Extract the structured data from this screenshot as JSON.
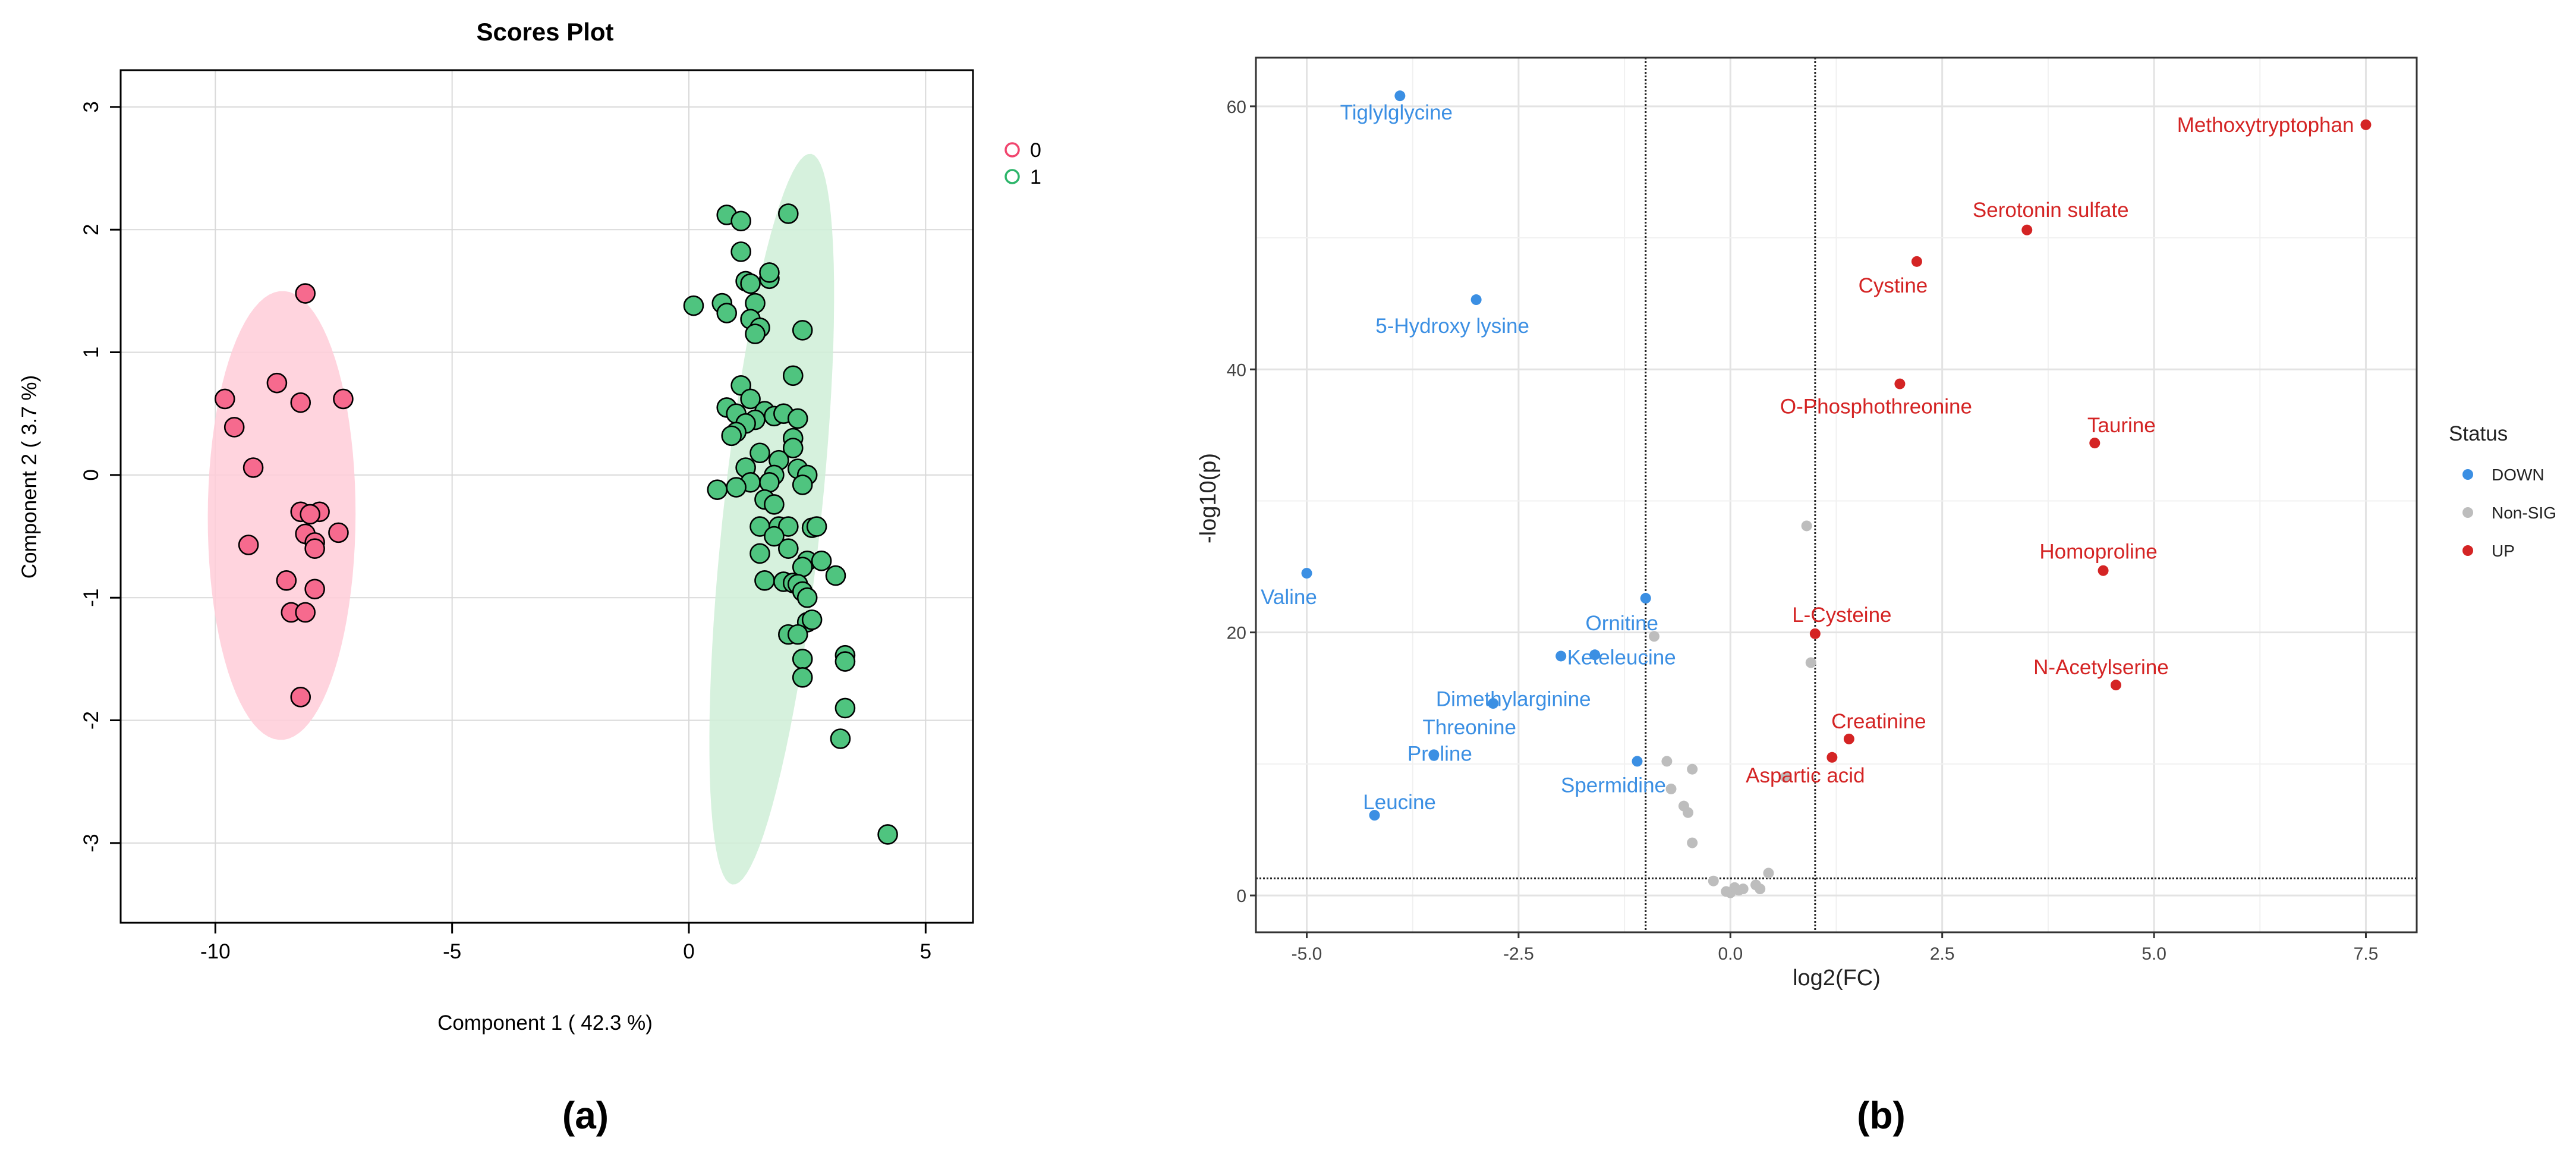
{
  "chart_data": [
    {
      "panel": "a",
      "type": "scatter",
      "title": "Scores Plot",
      "xlabel": "Component 1 ( 42.3 %)",
      "ylabel": "Component 2 ( 3.7 %)",
      "xlim": [
        -12,
        6
      ],
      "ylim": [
        -3.65,
        3.3
      ],
      "xticks": [
        -10,
        -5,
        0,
        5
      ],
      "xtick_labels": [
        "-10",
        "-5",
        "0",
        "5"
      ],
      "yticks": [
        -3,
        -2,
        -1,
        0,
        1,
        2,
        3
      ],
      "ytick_labels": [
        "-3",
        "-2",
        "-1",
        "0",
        "1",
        "2",
        "3"
      ],
      "grid": true,
      "legend_position": "top-right",
      "series": [
        {
          "name": "0",
          "color": "#f1456e",
          "fill": "#f66a8e",
          "ellipse_fill": "#ffccd8",
          "points": [
            [
              -8.1,
              1.48
            ],
            [
              -9.8,
              0.62
            ],
            [
              -8.7,
              0.75
            ],
            [
              -8.2,
              0.59
            ],
            [
              -7.3,
              0.62
            ],
            [
              -9.6,
              0.39
            ],
            [
              -9.2,
              0.06
            ],
            [
              -8.2,
              -0.3
            ],
            [
              -7.8,
              -0.3
            ],
            [
              -8.0,
              -0.32
            ],
            [
              -8.1,
              -0.48
            ],
            [
              -7.9,
              -0.55
            ],
            [
              -7.9,
              -0.6
            ],
            [
              -7.4,
              -0.47
            ],
            [
              -9.3,
              -0.57
            ],
            [
              -8.5,
              -0.86
            ],
            [
              -7.9,
              -0.93
            ],
            [
              -8.4,
              -1.12
            ],
            [
              -8.1,
              -1.12
            ],
            [
              -8.2,
              -1.81
            ]
          ],
          "ellipse": {
            "center": [
              -8.6,
              -0.33
            ],
            "angle": 88,
            "axes": [
              1.83,
              1.56
            ]
          }
        },
        {
          "name": "1",
          "color": "#2db56a",
          "fill": "#4fc47f",
          "ellipse_fill": "#cfeed7",
          "points": [
            [
              0.8,
              2.12
            ],
            [
              1.1,
              2.07
            ],
            [
              2.1,
              2.13
            ],
            [
              1.1,
              1.82
            ],
            [
              1.7,
              1.6
            ],
            [
              1.7,
              1.65
            ],
            [
              1.2,
              1.58
            ],
            [
              1.3,
              1.56
            ],
            [
              0.7,
              1.4
            ],
            [
              1.4,
              1.4
            ],
            [
              0.1,
              1.38
            ],
            [
              0.8,
              1.32
            ],
            [
              1.3,
              1.27
            ],
            [
              1.5,
              1.2
            ],
            [
              2.4,
              1.18
            ],
            [
              1.4,
              1.15
            ],
            [
              2.2,
              0.81
            ],
            [
              1.1,
              0.73
            ],
            [
              1.3,
              0.62
            ],
            [
              0.8,
              0.55
            ],
            [
              1.0,
              0.5
            ],
            [
              1.6,
              0.52
            ],
            [
              1.8,
              0.48
            ],
            [
              2.0,
              0.5
            ],
            [
              2.3,
              0.46
            ],
            [
              1.4,
              0.45
            ],
            [
              1.2,
              0.42
            ],
            [
              1.0,
              0.35
            ],
            [
              0.9,
              0.32
            ],
            [
              2.2,
              0.3
            ],
            [
              2.2,
              0.22
            ],
            [
              1.5,
              0.18
            ],
            [
              1.9,
              0.12
            ],
            [
              1.2,
              0.06
            ],
            [
              2.3,
              0.05
            ],
            [
              1.8,
              0.0
            ],
            [
              1.3,
              -0.06
            ],
            [
              1.7,
              -0.06
            ],
            [
              2.5,
              0.0
            ],
            [
              0.6,
              -0.12
            ],
            [
              1.0,
              -0.1
            ],
            [
              2.4,
              -0.08
            ],
            [
              1.6,
              -0.2
            ],
            [
              1.8,
              -0.24
            ],
            [
              1.5,
              -0.42
            ],
            [
              1.9,
              -0.42
            ],
            [
              2.1,
              -0.42
            ],
            [
              2.6,
              -0.43
            ],
            [
              2.7,
              -0.42
            ],
            [
              1.8,
              -0.5
            ],
            [
              1.5,
              -0.64
            ],
            [
              2.1,
              -0.6
            ],
            [
              2.5,
              -0.7
            ],
            [
              2.4,
              -0.75
            ],
            [
              2.8,
              -0.7
            ],
            [
              3.1,
              -0.82
            ],
            [
              1.6,
              -0.86
            ],
            [
              2.0,
              -0.87
            ],
            [
              2.2,
              -0.88
            ],
            [
              2.3,
              -0.89
            ],
            [
              2.4,
              -0.95
            ],
            [
              2.5,
              -1.0
            ],
            [
              2.5,
              -1.2
            ],
            [
              2.6,
              -1.18
            ],
            [
              2.1,
              -1.3
            ],
            [
              2.3,
              -1.3
            ],
            [
              3.3,
              -1.47
            ],
            [
              3.3,
              -1.52
            ],
            [
              2.4,
              -1.5
            ],
            [
              2.4,
              -1.65
            ],
            [
              3.3,
              -1.9
            ],
            [
              3.2,
              -2.15
            ],
            [
              4.2,
              -2.93
            ]
          ],
          "ellipse": {
            "center": [
              1.75,
              -0.36
            ],
            "angle": 73,
            "axes": [
              3.1,
              1.0
            ]
          }
        }
      ]
    },
    {
      "panel": "b",
      "type": "scatter",
      "title": "",
      "xlabel": "log2(FC)",
      "ylabel": "-log10(p)",
      "xlim": [
        -5.6,
        8.1
      ],
      "ylim": [
        -2.8,
        63.7
      ],
      "xticks": [
        -5.0,
        -2.5,
        0.0,
        2.5,
        5.0,
        7.5
      ],
      "xtick_labels": [
        "-5.0",
        "-2.5",
        "0.0",
        "2.5",
        "5.0",
        "7.5"
      ],
      "yticks": [
        0,
        20,
        40,
        60
      ],
      "ytick_labels": [
        "0",
        "20",
        "40",
        "60"
      ],
      "grid": true,
      "thresholds": {
        "fc_left": -1,
        "fc_right": 1,
        "p_line": 1.3
      },
      "legend_title": "Status",
      "legend_position": "right",
      "series": [
        {
          "name": "DOWN",
          "color": "#3b8fe3",
          "points": [
            {
              "x": -3.9,
              "y": 60.8,
              "label": "Tiglylglycine"
            },
            {
              "x": -3.0,
              "y": 45.3,
              "label": "5-Hydroxy lysine"
            },
            {
              "x": -5.0,
              "y": 24.5,
              "label": "Valine"
            },
            {
              "x": -1.0,
              "y": 22.6,
              "label": "Ornitine"
            },
            {
              "x": -2.0,
              "y": 18.2,
              "label": "Dimethylarginine"
            },
            {
              "x": -1.6,
              "y": 18.3,
              "label": "Keteleucine"
            },
            {
              "x": -2.8,
              "y": 14.6,
              "label": "Threonine"
            },
            {
              "x": -3.5,
              "y": 10.7,
              "label": "Proline"
            },
            {
              "x": -1.1,
              "y": 10.2,
              "label": "Spermidine"
            },
            {
              "x": -4.2,
              "y": 6.1,
              "label": "Leucine"
            }
          ]
        },
        {
          "name": "Non-SIG",
          "color": "#bdbdbd",
          "points": [
            {
              "x": 0.9,
              "y": 28.1
            },
            {
              "x": -0.9,
              "y": 19.7
            },
            {
              "x": 0.95,
              "y": 17.7
            },
            {
              "x": -0.75,
              "y": 10.2
            },
            {
              "x": -0.45,
              "y": 9.6
            },
            {
              "x": -0.7,
              "y": 8.1
            },
            {
              "x": -0.55,
              "y": 6.8
            },
            {
              "x": -0.5,
              "y": 6.3
            },
            {
              "x": -0.45,
              "y": 4.0
            },
            {
              "x": 0.65,
              "y": 9.0
            },
            {
              "x": -0.2,
              "y": 1.1
            },
            {
              "x": 0.45,
              "y": 1.7
            },
            {
              "x": 0.3,
              "y": 0.8
            },
            {
              "x": 0.05,
              "y": 0.6
            },
            {
              "x": 0.15,
              "y": 0.5
            },
            {
              "x": 0.0,
              "y": 0.2
            },
            {
              "x": 0.1,
              "y": 0.4
            },
            {
              "x": 0.35,
              "y": 0.5
            },
            {
              "x": -0.05,
              "y": 0.3
            }
          ]
        },
        {
          "name": "UP",
          "color": "#d42424",
          "points": [
            {
              "x": 7.5,
              "y": 58.6,
              "label": "Methoxytryptophan"
            },
            {
              "x": 3.5,
              "y": 50.6,
              "label": "Serotonin sulfate"
            },
            {
              "x": 2.2,
              "y": 48.2,
              "label": "Cystine"
            },
            {
              "x": 2.0,
              "y": 38.9,
              "label": "O-Phosphothreonine"
            },
            {
              "x": 4.3,
              "y": 34.4,
              "label": "Taurine"
            },
            {
              "x": 4.4,
              "y": 24.7,
              "label": "Homoproline"
            },
            {
              "x": 1.0,
              "y": 19.9,
              "label": "L-Cysteine"
            },
            {
              "x": 4.55,
              "y": 16.0,
              "label": "N-Acetylserine"
            },
            {
              "x": 1.4,
              "y": 11.9,
              "label": "Creatinine"
            },
            {
              "x": 1.2,
              "y": 10.5,
              "label": "Aspartic acid"
            }
          ]
        }
      ]
    }
  ],
  "captions": {
    "a": "(a)",
    "b": "(b)"
  }
}
